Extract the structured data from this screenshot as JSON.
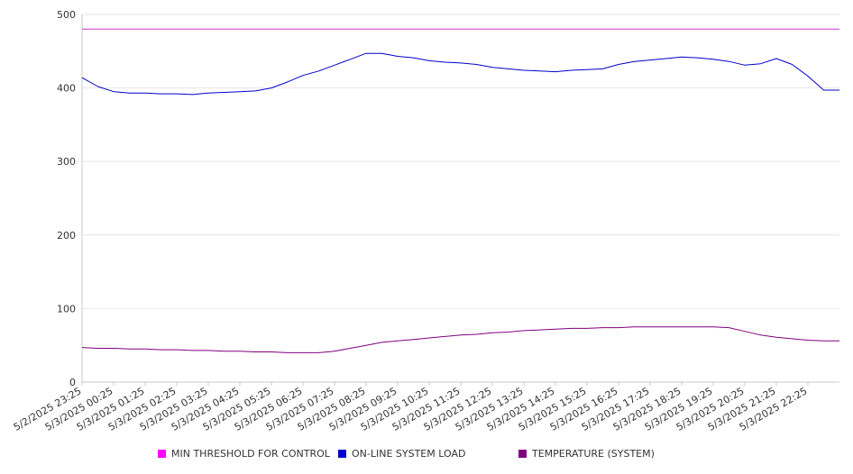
{
  "chart_data": {
    "type": "line",
    "title": "",
    "xlabel": "",
    "ylabel": "",
    "ylim": [
      0,
      500
    ],
    "yticks": [
      0,
      100,
      200,
      300,
      400,
      500
    ],
    "grid": true,
    "legend_position": "bottom",
    "x_tick_labels": [
      "5/2/2025 23:25",
      "5/3/2025 00:25",
      "5/3/2025 01:25",
      "5/3/2025 02:25",
      "5/3/2025 03:25",
      "5/3/2025 04:25",
      "5/3/2025 05:25",
      "5/3/2025 06:25",
      "5/3/2025 07:25",
      "5/3/2025 08:25",
      "5/3/2025 09:25",
      "5/3/2025 10:25",
      "5/3/2025 11:25",
      "5/3/2025 12:25",
      "5/3/2025 13:25",
      "5/3/2025 14:25",
      "5/3/2025 15:25",
      "5/3/2025 16:25",
      "5/3/2025 17:25",
      "5/3/2025 18:25",
      "5/3/2025 19:25",
      "5/3/2025 20:25",
      "5/3/2025 21:25",
      "5/3/2025 22:25"
    ],
    "x": [
      "5/2/2025 23:25",
      "5/2/2025 23:55",
      "5/3/2025 00:25",
      "5/3/2025 00:55",
      "5/3/2025 01:25",
      "5/3/2025 01:55",
      "5/3/2025 02:25",
      "5/3/2025 02:55",
      "5/3/2025 03:25",
      "5/3/2025 03:55",
      "5/3/2025 04:25",
      "5/3/2025 04:55",
      "5/3/2025 05:25",
      "5/3/2025 05:55",
      "5/3/2025 06:25",
      "5/3/2025 06:55",
      "5/3/2025 07:25",
      "5/3/2025 07:55",
      "5/3/2025 08:25",
      "5/3/2025 08:55",
      "5/3/2025 09:25",
      "5/3/2025 09:55",
      "5/3/2025 10:25",
      "5/3/2025 10:55",
      "5/3/2025 11:25",
      "5/3/2025 11:55",
      "5/3/2025 12:25",
      "5/3/2025 12:55",
      "5/3/2025 13:25",
      "5/3/2025 13:55",
      "5/3/2025 14:25",
      "5/3/2025 14:55",
      "5/3/2025 15:25",
      "5/3/2025 15:55",
      "5/3/2025 16:25",
      "5/3/2025 16:55",
      "5/3/2025 17:25",
      "5/3/2025 17:55",
      "5/3/2025 18:25",
      "5/3/2025 18:55",
      "5/3/2025 19:25",
      "5/3/2025 19:55",
      "5/3/2025 20:25",
      "5/3/2025 20:55",
      "5/3/2025 21:25",
      "5/3/2025 21:55",
      "5/3/2025 22:25",
      "5/3/2025 22:55"
    ],
    "series": [
      {
        "name": "MIN THRESHOLD FOR CONTROL",
        "color": "#cc33cc",
        "values": [
          480,
          480,
          480,
          480,
          480,
          480,
          480,
          480,
          480,
          480,
          480,
          480,
          480,
          480,
          480,
          480,
          480,
          480,
          480,
          480,
          480,
          480,
          480,
          480,
          480,
          480,
          480,
          480,
          480,
          480,
          480,
          480,
          480,
          480,
          480,
          480,
          480,
          480,
          480,
          480,
          480,
          480,
          480,
          480,
          480,
          480,
          480,
          480
        ]
      },
      {
        "name": "ON-LINE SYSTEM LOAD",
        "color": "#0000cc",
        "values": [
          414,
          402,
          395,
          393,
          393,
          392,
          392,
          391,
          393,
          394,
          395,
          396,
          400,
          408,
          417,
          423,
          431,
          439,
          447,
          447,
          443,
          441,
          437,
          435,
          434,
          432,
          428,
          426,
          424,
          423,
          422,
          424,
          425,
          426,
          432,
          436,
          438,
          440,
          442,
          441,
          439,
          436,
          431,
          433,
          440,
          432,
          416,
          397
        ]
      },
      {
        "name": "TEMPERATURE (SYSTEM)",
        "color": "#800080",
        "values": [
          47,
          46,
          46,
          45,
          45,
          44,
          44,
          43,
          43,
          42,
          42,
          41,
          41,
          40,
          40,
          40,
          42,
          46,
          50,
          54,
          56,
          58,
          60,
          62,
          64,
          65,
          67,
          68,
          70,
          71,
          72,
          73,
          73,
          74,
          74,
          75,
          75,
          75,
          75,
          75,
          75,
          74,
          69,
          64,
          61,
          59,
          57,
          56
        ]
      }
    ]
  }
}
